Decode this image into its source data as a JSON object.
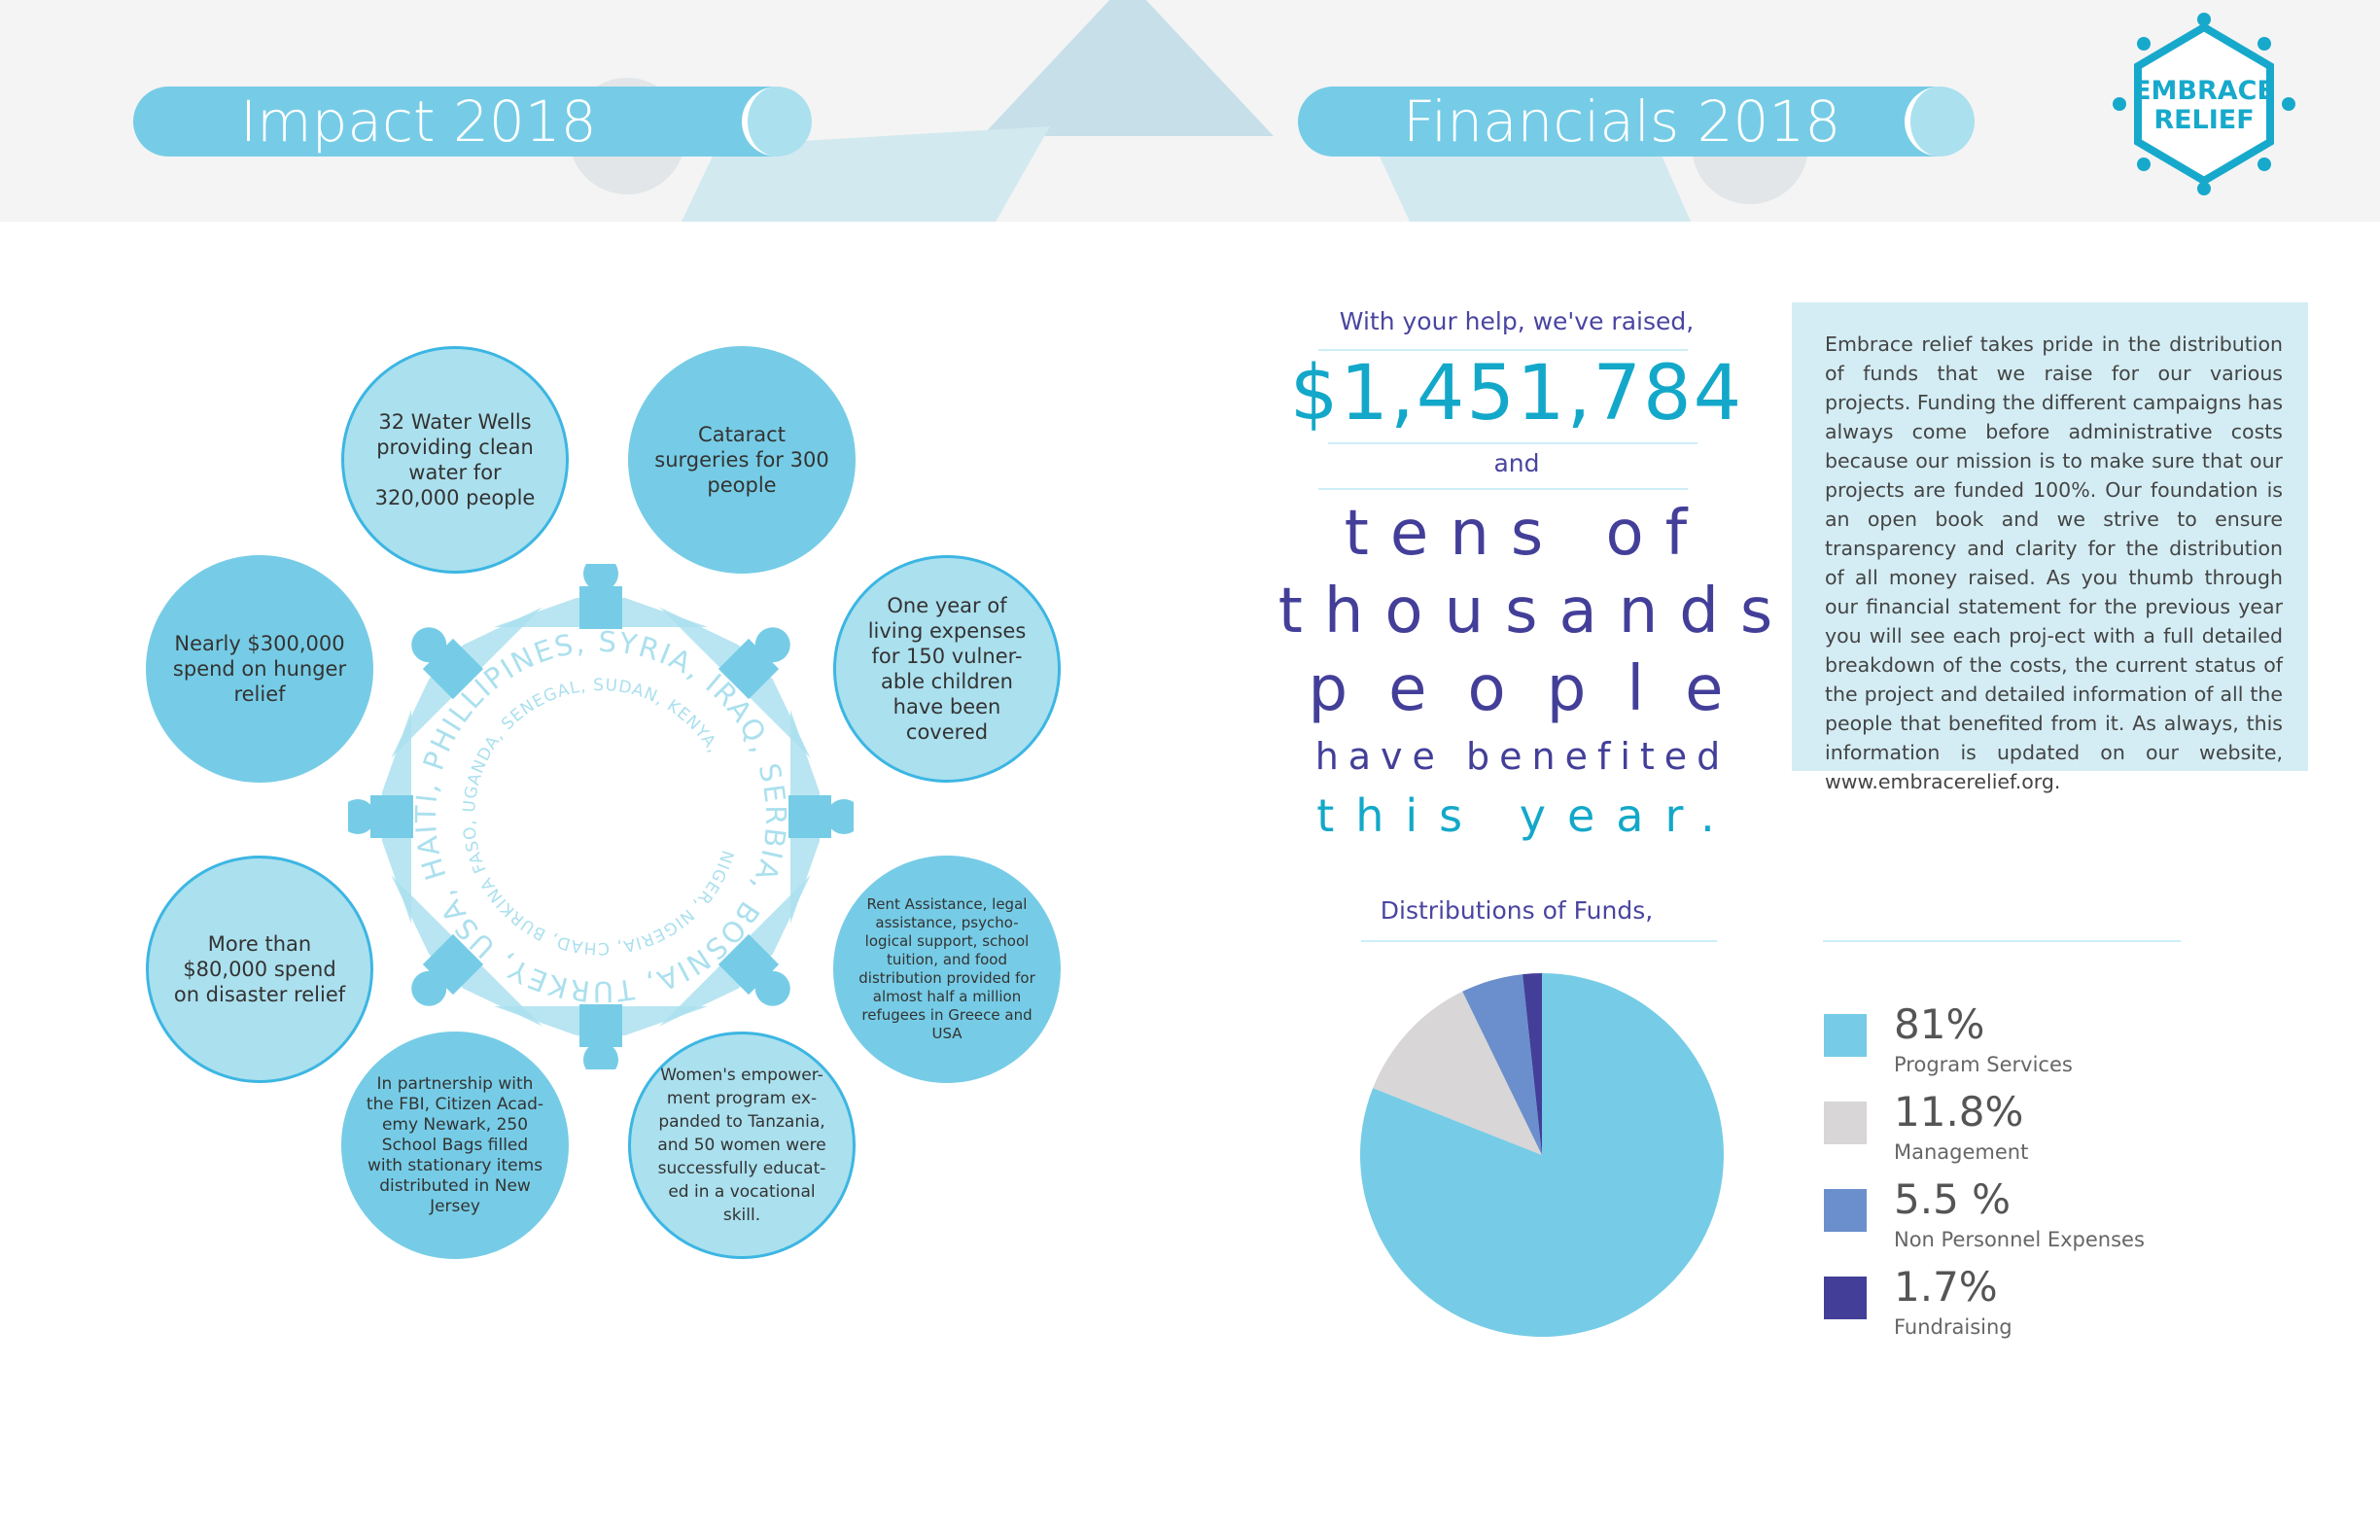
{
  "header": {
    "impact_title": "Impact 2018",
    "financials_title": "Financials 2018",
    "logo_text": "EMBRACE RELIEF"
  },
  "impact": {
    "circles": [
      {
        "text": "32 Water Wells providing clean water for 320,000 people"
      },
      {
        "text": "Cataract surgeries for 300 people"
      },
      {
        "text": "Nearly $300,000 spend on hunger relief"
      },
      {
        "text": "One year of living expenses for 150 vulner-able children have been covered"
      },
      {
        "text": "More than $80,000 spend on disaster relief"
      },
      {
        "text": "Rent Assistance, legal assistance, psycho-logical support, school tuition, and food distribution provided for almost half a million refugees in Greece and USA"
      },
      {
        "text": "In partnership with the FBI, Citizen Acad-emy Newark, 250 School Bags filled with stationary items distributed in New Jersey"
      },
      {
        "text": "Women's empower-ment program ex-panded to Tanzania, and 50 women were successfully educat-ed in a vocational skill."
      }
    ],
    "countries_outer": "BOSNIA, TURKEY, USA, HAITI, PHILLIPINES, SYRIA, IRAQ, SERBIA,",
    "countries_inner": "NIGER, NIGERIA, CHAD, BURKINA FASO, UGANDA, SENEGAL, SUDAN, KENYA,"
  },
  "financials": {
    "intro": "With your help, we've raised,",
    "amount": "$1,451,784",
    "and": "and",
    "line1": "tens of",
    "line2": "thousands",
    "line3": "people",
    "line4": "have benefited",
    "line5": "this year.",
    "paragraph": "Embrace relief takes pride in the distribution of funds that we raise for our various projects. Funding the different campaigns has always come before administrative costs because our mission is to make sure that our projects are funded 100%. Our foundation is an open book and we strive to ensure transparency and clarity for the distribution of all money raised. As you thumb through our financial statement for the previous year you will see each proj-ect with a full detailed breakdown of the costs, the current status of the project and detailed information of all the people that benefited from it. As always, this information is updated on our website, www.embracerelief.org."
  },
  "chart_data": {
    "type": "pie",
    "title": "Distributions of Funds,",
    "legend_placement": "right",
    "slices": [
      {
        "label": "Program Services",
        "value": 81,
        "display": "81%",
        "color": "#76cce6"
      },
      {
        "label": "Management",
        "value": 11.8,
        "display": "11.8%",
        "color": "#d8d6d6"
      },
      {
        "label": "Non Personnel Expenses",
        "value": 5.5,
        "display": "5.5 %",
        "color": "#6b8fcc"
      },
      {
        "label": "Fundraising",
        "value": 1.7,
        "display": "1.7%",
        "color": "#433f99"
      }
    ]
  }
}
